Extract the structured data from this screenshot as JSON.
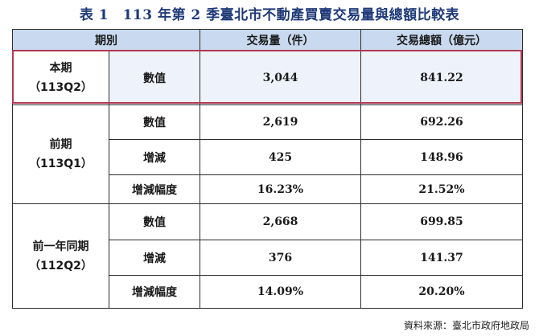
{
  "title": "表 1　113 年第 2 季臺北市不動產買賣交易量與總額比較表",
  "headers": {
    "period": "期別",
    "volume": "交易量（件）",
    "amount": "交易總額（億元）"
  },
  "groups": [
    {
      "period_line1": "本期",
      "period_line2": "（113Q2）",
      "rows": [
        {
          "label": "數值",
          "volume": "3,044",
          "amount": "841.22"
        }
      ]
    },
    {
      "period_line1": "前期",
      "period_line2": "（113Q1）",
      "rows": [
        {
          "label": "數值",
          "volume": "2,619",
          "amount": "692.26"
        },
        {
          "label": "增減",
          "volume": "425",
          "amount": "148.96"
        },
        {
          "label": "增減幅度",
          "volume": "16.23%",
          "amount": "21.52%"
        }
      ]
    },
    {
      "period_line1": "前一年同期",
      "period_line2": "（112Q2）",
      "rows": [
        {
          "label": "數值",
          "volume": "2,668",
          "amount": "699.85"
        },
        {
          "label": "增減",
          "volume": "376",
          "amount": "141.37"
        },
        {
          "label": "增減幅度",
          "volume": "14.09%",
          "amount": "20.20%"
        }
      ]
    }
  ],
  "source": "資料來源：臺北市政府地政局"
}
